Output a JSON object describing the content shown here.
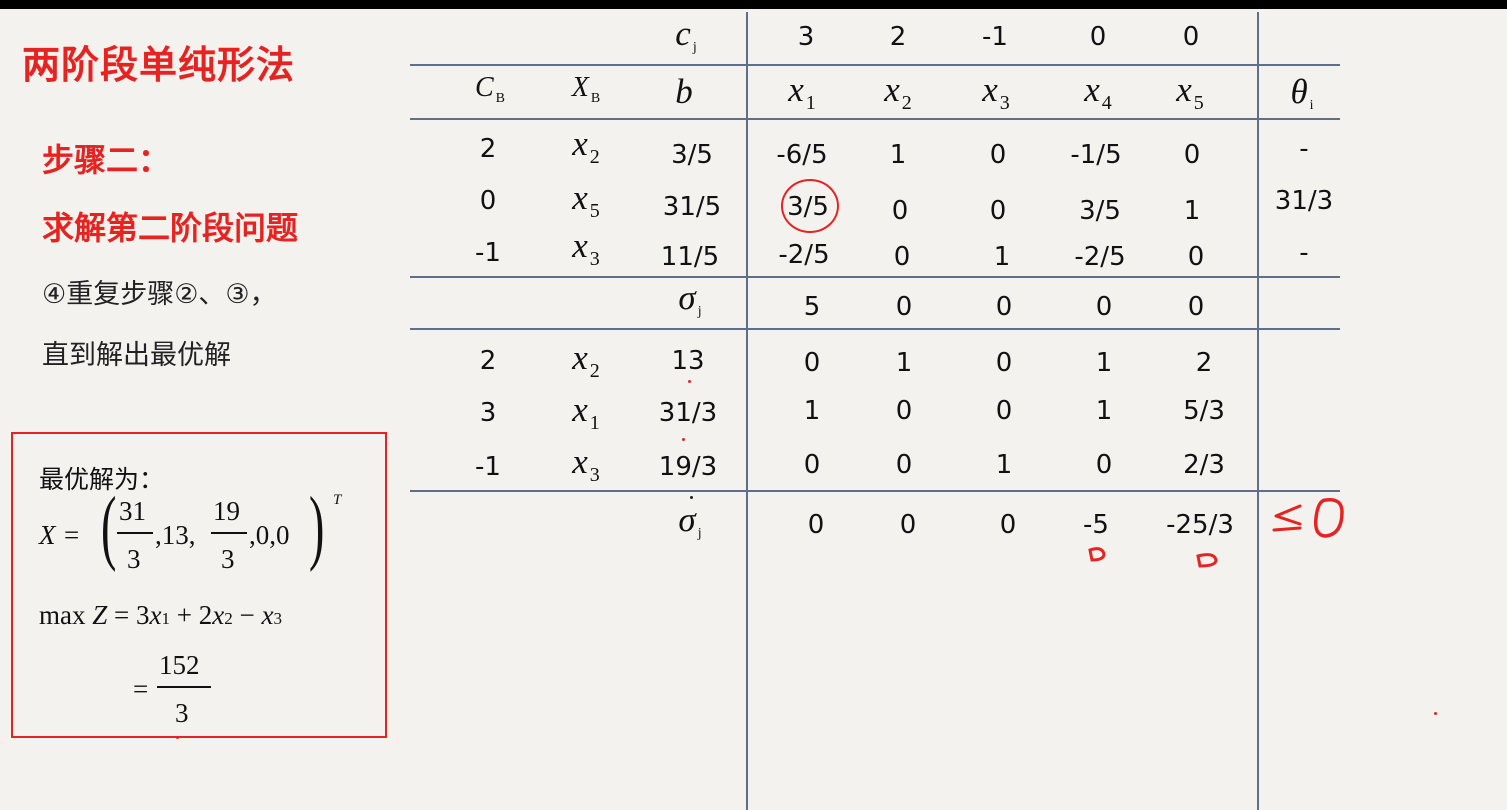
{
  "title": "两阶段单纯形法",
  "step": "步骤二：",
  "subtitle": "求解第二阶段问题",
  "note_line1": "④重复步骤②、③，",
  "note_line2": "直到解出最优解",
  "optimal": {
    "label": "最优解为：",
    "x_lhs": "X =",
    "f1_num": "31",
    "f1_den": "3",
    "mid": ",13,",
    "f2_num": "19",
    "f2_den": "3",
    "tail": ",0,0",
    "sup": "T",
    "z_max": "max",
    "z_z": "Z",
    "z_eq": "= 3",
    "z_x": "x",
    "z_1": "1",
    "z_plus": "+ 2",
    "z_2": "2",
    "z_minus": "−",
    "z_3": "3",
    "res_eq": "=",
    "res_num": "152",
    "res_den": "3"
  },
  "table": {
    "cj_label": "c",
    "cj_sub": "j",
    "cj_values": [
      "3",
      "2",
      "-1",
      "0",
      "0"
    ],
    "headers": {
      "cb": "C",
      "cb_sub": "B",
      "xb": "X",
      "xb_sub": "B",
      "b": "b",
      "x1": "x",
      "x1_sub": "1",
      "x2": "x",
      "x2_sub": "2",
      "x3": "x",
      "x3_sub": "3",
      "x4": "x",
      "x4_sub": "4",
      "x5": "x",
      "x5_sub": "5",
      "theta": "θ",
      "theta_sub": "i"
    },
    "block1": [
      {
        "cb": "2",
        "xb": "x",
        "xb_sub": "2",
        "b": "3/5",
        "vals": [
          "-6/5",
          "1",
          "0",
          "-1/5",
          "0"
        ],
        "theta": "-"
      },
      {
        "cb": "0",
        "xb": "x",
        "xb_sub": "5",
        "b": "31/5",
        "vals": [
          "3/5",
          "0",
          "0",
          "3/5",
          "1"
        ],
        "theta": "31/3"
      },
      {
        "cb": "-1",
        "xb": "x",
        "xb_sub": "3",
        "b": "11/5",
        "vals": [
          "-2/5",
          "0",
          "1",
          "-2/5",
          "0"
        ],
        "theta": "-"
      }
    ],
    "sigma_label": "σ",
    "sigma_sub": "j",
    "sigma1": [
      "5",
      "0",
      "0",
      "0",
      "0"
    ],
    "block2": [
      {
        "cb": "2",
        "xb": "x",
        "xb_sub": "2",
        "b": "13",
        "vals": [
          "0",
          "1",
          "0",
          "1",
          "2"
        ]
      },
      {
        "cb": "3",
        "xb": "x",
        "xb_sub": "1",
        "b": "31/3",
        "vals": [
          "1",
          "0",
          "0",
          "1",
          "5/3"
        ]
      },
      {
        "cb": "-1",
        "xb": "x",
        "xb_sub": "3",
        "b": "19/3",
        "vals": [
          "0",
          "0",
          "1",
          "0",
          "2/3"
        ]
      }
    ],
    "sigma2": [
      "0",
      "0",
      "0",
      "-5",
      "-25/3"
    ]
  },
  "colors": {
    "accent_red": "#e52421",
    "grid_line": "#5f6f8a",
    "background": "#f4f2ef"
  }
}
